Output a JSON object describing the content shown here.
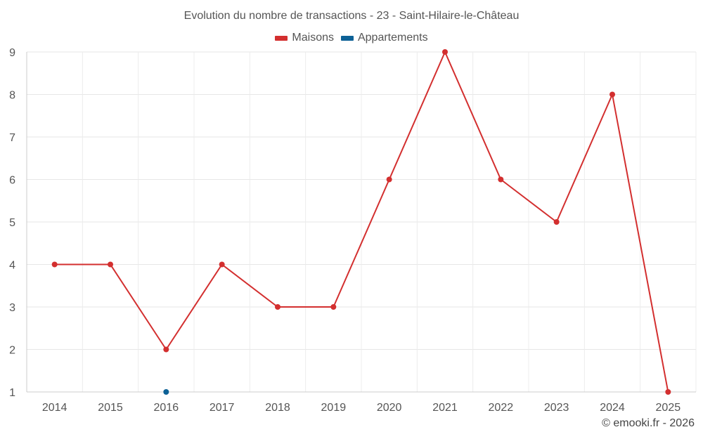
{
  "chart_data": {
    "type": "line",
    "title": "Evolution du nombre de transactions - 23 - Saint-Hilaire-le-Château",
    "categories": [
      "2014",
      "2015",
      "2016",
      "2017",
      "2018",
      "2019",
      "2020",
      "2021",
      "2022",
      "2023",
      "2024",
      "2025"
    ],
    "series": [
      {
        "name": "Maisons",
        "color": "#d32f2f",
        "values": [
          4,
          4,
          2,
          4,
          3,
          3,
          6,
          9,
          6,
          5,
          8,
          1
        ]
      },
      {
        "name": "Appartements",
        "color": "#0d6196",
        "values": [
          null,
          null,
          1,
          null,
          null,
          null,
          null,
          null,
          null,
          null,
          null,
          null
        ]
      }
    ],
    "ylim": [
      1,
      9
    ],
    "yticks": [
      "1",
      "2",
      "3",
      "4",
      "5",
      "6",
      "7",
      "8",
      "9"
    ],
    "grid": true,
    "legend_position": "top-center"
  },
  "footer": {
    "credit": "© emooki.fr - 2026"
  }
}
